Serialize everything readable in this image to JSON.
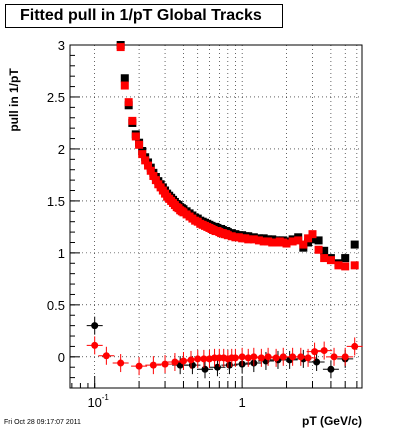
{
  "chart_data": {
    "type": "scatter",
    "title": "Fitted pull in 1/pT  Global Tracks",
    "xlabel": "pT (GeV/c)",
    "ylabel": "pull in 1/pT",
    "xscale": "log",
    "xlim": [
      0.068,
      6.5
    ],
    "ylim": [
      -0.3,
      3.0
    ],
    "grid": true,
    "x_tick_labels": [
      "10^-1",
      "1"
    ],
    "y_tick_labels": [
      "0",
      "0.5",
      "1",
      "1.5",
      "2",
      "2.5",
      "3"
    ],
    "series": [
      {
        "color": "#000000",
        "marker": "square",
        "x": [
          0.15,
          0.16,
          0.17,
          0.18,
          0.19,
          0.2,
          0.21,
          0.22,
          0.23,
          0.24,
          0.25,
          0.26,
          0.27,
          0.28,
          0.29,
          0.3,
          0.31,
          0.32,
          0.33,
          0.34,
          0.35,
          0.36,
          0.37,
          0.38,
          0.39,
          0.4,
          0.42,
          0.44,
          0.46,
          0.48,
          0.5,
          0.52,
          0.54,
          0.56,
          0.58,
          0.6,
          0.62,
          0.64,
          0.66,
          0.68,
          0.7,
          0.72,
          0.74,
          0.76,
          0.78,
          0.8,
          0.85,
          0.9,
          0.95,
          1.0,
          1.05,
          1.1,
          1.2,
          1.3,
          1.4,
          1.5,
          1.6,
          1.7,
          1.8,
          1.9,
          2.0,
          2.2,
          2.4,
          2.6,
          2.8,
          3.0,
          3.3,
          3.6,
          4.0,
          4.5,
          5.0,
          5.8
        ],
        "y": [
          3.0,
          2.68,
          2.42,
          2.25,
          2.14,
          2.06,
          1.98,
          1.92,
          1.87,
          1.82,
          1.77,
          1.73,
          1.69,
          1.66,
          1.63,
          1.6,
          1.57,
          1.55,
          1.53,
          1.51,
          1.49,
          1.47,
          1.46,
          1.44,
          1.43,
          1.42,
          1.4,
          1.38,
          1.36,
          1.34,
          1.33,
          1.31,
          1.3,
          1.29,
          1.28,
          1.27,
          1.26,
          1.25,
          1.25,
          1.24,
          1.23,
          1.23,
          1.22,
          1.21,
          1.21,
          1.2,
          1.19,
          1.18,
          1.17,
          1.17,
          1.16,
          1.16,
          1.15,
          1.14,
          1.14,
          1.13,
          1.13,
          1.12,
          1.12,
          1.12,
          1.11,
          1.13,
          1.15,
          1.05,
          1.1,
          1.13,
          1.12,
          1.02,
          0.95,
          0.9,
          0.95,
          1.08
        ],
        "x_low": [
          0.1,
          0.38,
          0.46,
          0.56,
          0.68,
          0.82,
          1.0,
          1.2,
          1.45,
          1.75,
          2.1,
          2.6,
          3.2,
          4.0,
          5.0
        ],
        "y_low": [
          0.3,
          -0.08,
          -0.08,
          -0.12,
          -0.1,
          -0.08,
          -0.07,
          -0.06,
          -0.04,
          -0.03,
          -0.03,
          -0.02,
          -0.05,
          -0.12,
          -0.02
        ]
      },
      {
        "color": "#ff0000",
        "marker": "square",
        "x": [
          0.15,
          0.16,
          0.17,
          0.18,
          0.19,
          0.2,
          0.21,
          0.22,
          0.23,
          0.24,
          0.25,
          0.26,
          0.27,
          0.28,
          0.29,
          0.3,
          0.31,
          0.32,
          0.33,
          0.34,
          0.35,
          0.36,
          0.37,
          0.38,
          0.39,
          0.4,
          0.42,
          0.44,
          0.46,
          0.48,
          0.5,
          0.52,
          0.54,
          0.56,
          0.58,
          0.6,
          0.62,
          0.64,
          0.66,
          0.68,
          0.7,
          0.72,
          0.74,
          0.76,
          0.78,
          0.8,
          0.85,
          0.9,
          0.95,
          1.0,
          1.05,
          1.1,
          1.2,
          1.3,
          1.4,
          1.5,
          1.6,
          1.7,
          1.8,
          1.9,
          2.0,
          2.2,
          2.4,
          2.6,
          2.8,
          3.0,
          3.3,
          3.6,
          4.0,
          4.5,
          5.0,
          5.8
        ],
        "y": [
          2.98,
          2.61,
          2.45,
          2.27,
          2.12,
          2.04,
          1.95,
          1.89,
          1.84,
          1.79,
          1.74,
          1.7,
          1.66,
          1.63,
          1.6,
          1.57,
          1.54,
          1.52,
          1.5,
          1.48,
          1.46,
          1.44,
          1.43,
          1.41,
          1.4,
          1.39,
          1.37,
          1.35,
          1.33,
          1.31,
          1.3,
          1.28,
          1.27,
          1.26,
          1.25,
          1.24,
          1.23,
          1.22,
          1.21,
          1.21,
          1.2,
          1.19,
          1.19,
          1.18,
          1.18,
          1.17,
          1.16,
          1.15,
          1.15,
          1.14,
          1.14,
          1.13,
          1.13,
          1.12,
          1.11,
          1.11,
          1.1,
          1.1,
          1.11,
          1.1,
          1.09,
          1.11,
          1.12,
          1.08,
          1.14,
          1.18,
          1.03,
          0.95,
          0.93,
          0.88,
          0.87,
          0.88
        ],
        "x_low": [
          0.1,
          0.12,
          0.15,
          0.2,
          0.25,
          0.3,
          0.35,
          0.4,
          0.45,
          0.5,
          0.55,
          0.6,
          0.65,
          0.7,
          0.75,
          0.8,
          0.85,
          0.9,
          1.0,
          1.1,
          1.2,
          1.35,
          1.5,
          1.7,
          1.9,
          2.2,
          2.5,
          2.8,
          3.1,
          3.6,
          4.2,
          5.0,
          5.8
        ],
        "y_low": [
          0.11,
          0.01,
          -0.06,
          -0.09,
          -0.08,
          -0.07,
          -0.05,
          -0.04,
          -0.03,
          -0.02,
          -0.02,
          -0.02,
          -0.01,
          -0.01,
          -0.01,
          -0.02,
          -0.01,
          -0.01,
          0.0,
          -0.01,
          0.0,
          -0.01,
          0.0,
          -0.01,
          0.0,
          0.0,
          0.0,
          -0.01,
          0.05,
          0.06,
          0.0,
          0.0,
          0.1
        ]
      }
    ]
  },
  "footer": {
    "timestamp": "Fri Oct 28 09:17:07 2011"
  }
}
